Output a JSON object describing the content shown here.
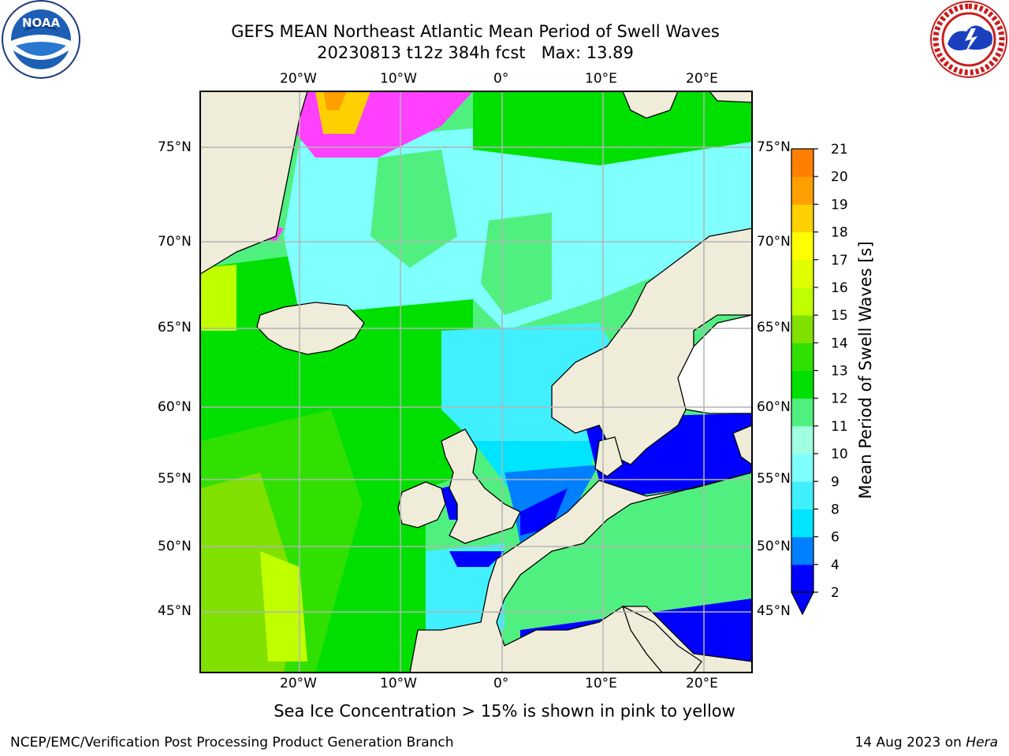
{
  "header": {
    "title_line1": "GEFS MEAN Northeast Atlantic Mean Period of Swell Waves",
    "title_line2": "20230813 t12z 384h fcst   Max: 13.89"
  },
  "logos": {
    "left": {
      "name": "noaa-logo",
      "text": "NOAA",
      "ring_text": "NATIONAL OCEANIC AND ATMOSPHERIC ADMINISTRATION · U.S. DEPARTMENT OF COMMERCE"
    },
    "right": {
      "name": "nws-logo",
      "ring_text": "NATIONAL WEATHER SERVICE"
    }
  },
  "map": {
    "lon_ticks_top": [
      "20°W",
      "10°W",
      "0°",
      "10°E",
      "20°E"
    ],
    "lon_ticks_bottom": [
      "20°W",
      "10°W",
      "0°",
      "10°E",
      "20°E"
    ],
    "lat_ticks_left": [
      "75°N",
      "70°N",
      "65°N",
      "60°N",
      "55°N",
      "50°N",
      "45°N"
    ],
    "lat_ticks_right": [
      "75°N",
      "70°N",
      "65°N",
      "60°N",
      "55°N",
      "50°N",
      "45°N"
    ],
    "colors": {
      "land": "#efecd9",
      "grid": "#b4b4b4",
      "border": "#000000"
    }
  },
  "colorbar": {
    "label": "Mean Period of Swell Waves [s]",
    "ticks": [
      "21",
      "20",
      "19",
      "18",
      "17",
      "16",
      "15",
      "14",
      "13",
      "12",
      "11",
      "10",
      "9",
      "8",
      "6",
      "4",
      "2"
    ],
    "colors": [
      "#0000ff",
      "#0080ff",
      "#00e5ff",
      "#40f0ff",
      "#80ffff",
      "#a0ffe0",
      "#50f080",
      "#00e000",
      "#30e000",
      "#80e000",
      "#c0ff00",
      "#e0ff00",
      "#ffff00",
      "#ffd000",
      "#ffa000",
      "#ff8000",
      "#ff5000",
      "#ff3000",
      "#ff0000"
    ]
  },
  "caption": "Sea Ice Concentration > 15% is shown in pink to yellow",
  "footer": {
    "left": "NCEP/EMC/Verification Post Processing Product Generation Branch",
    "right_prefix": "14 Aug 2023 on ",
    "right_host": "Hera"
  }
}
